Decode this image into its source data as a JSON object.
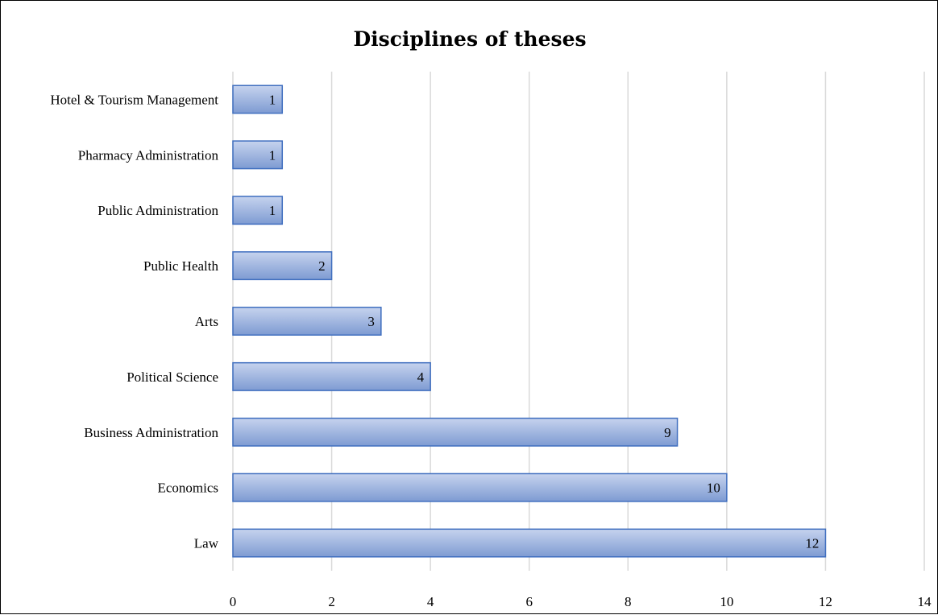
{
  "chart_data": {
    "type": "bar",
    "orientation": "horizontal",
    "title": "Disciplines of theses",
    "xlabel": "",
    "ylabel": "",
    "categories": [
      "Law",
      "Economics",
      "Business Administration",
      "Political Science",
      "Arts",
      "Public Health",
      "Public Administration",
      "Pharmacy Administration",
      "Hotel & Tourism Management"
    ],
    "values": [
      12,
      10,
      9,
      4,
      3,
      2,
      1,
      1,
      1
    ],
    "xlim": [
      0,
      14
    ],
    "xticks": [
      0,
      2,
      4,
      6,
      8,
      10,
      12,
      14
    ],
    "grid": "vertical",
    "legend": "none",
    "data_labels": true,
    "colors": {
      "bar_top": "#c6d3ee",
      "bar_bottom": "#7e9bd2",
      "bar_border": "#3f6ebf",
      "grid": "#d9d9d9"
    }
  }
}
